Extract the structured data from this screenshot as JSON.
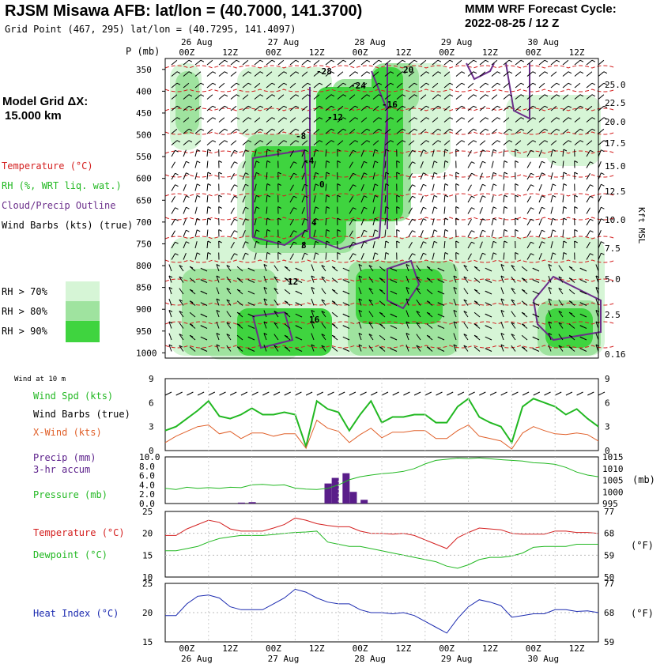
{
  "header": {
    "title": "RJSM Misawa AFB:  lat/lon = (40.7000, 141.3700)",
    "grid_point": "Grid Point (467, 295) lat/lon = (40.7295, 141.4097)",
    "cycle_line1": "MMM WRF Forecast Cycle:",
    "cycle_line2": "2022-08-25 / 12  Z"
  },
  "legend": {
    "model_grid": "Model Grid ΔX:",
    "model_grid_value": "15.000 km",
    "temperature": "Temperature (°C)",
    "rh": "RH (%, WRT liq. wat.)",
    "cloud": "Cloud/Precip Outline",
    "barbs": "Wind Barbs (kts) (true)",
    "rh70": "RH > 70%",
    "rh80": "RH > 80%",
    "rh90": "RH > 90%",
    "wind_at": "Wind at 10 m",
    "wind_spd": "Wind Spd (kts)",
    "wind_barbs": "Wind Barbs (true)",
    "xwind": "X-Wind (kts)",
    "precip1": "Precip (mm)",
    "precip2": "3-hr accum",
    "pressure": "Pressure (mb)",
    "temp2": "Temperature (°C)",
    "dewpoint": "Dewpoint (°C)",
    "heat_index": "Heat Index (°C)",
    "mb_unit": "(mb)",
    "f_unit": "(°F)",
    "kft": "Kft MSL",
    "p_mb": "P (mb)"
  },
  "colors": {
    "temperature": "#d42020",
    "rh": "#22b822",
    "cloud": "#6a2d8a",
    "xwind": "#e0602a",
    "precip": "#5a1e8a",
    "heat": "#1c2bb0",
    "rh70": "#d6f5d6",
    "rh80": "#9fe39f",
    "rh90": "#3fd43f"
  },
  "chart_data": [
    {
      "type": "heatmap",
      "name": "time-height cross section",
      "time_labels_top": [
        "00Z",
        "12Z",
        "00Z",
        "12Z",
        "00Z",
        "12Z",
        "00Z",
        "12Z",
        "00Z",
        "12Z"
      ],
      "date_labels": [
        "26 Aug",
        "27 Aug",
        "28 Aug",
        "29 Aug",
        "30 Aug"
      ],
      "pressure_levels": [
        350,
        400,
        450,
        500,
        550,
        600,
        650,
        700,
        750,
        800,
        850,
        900,
        950,
        1000
      ],
      "height_kft": [
        "25.0",
        "22.5",
        "20.0",
        "17.5",
        "15.0",
        "12.5",
        "10.0",
        "7.5",
        "5.0",
        "2.5",
        "0.16"
      ],
      "temp_labels": [
        "-28",
        "-24",
        "-16",
        "-12",
        "-8",
        "-4",
        "0",
        "4",
        "8",
        "12",
        "16",
        "20"
      ]
    },
    {
      "type": "line",
      "name": "10 m wind",
      "x_hours": [
        0,
        3,
        6,
        9,
        12,
        15,
        18,
        21,
        24,
        27,
        30,
        33,
        36,
        39,
        42,
        45,
        48,
        51,
        54,
        57,
        60,
        63,
        66,
        69,
        72,
        75,
        78,
        81,
        84,
        87,
        90,
        93,
        96,
        99,
        102,
        105,
        108,
        111,
        114,
        117,
        120
      ],
      "series": [
        {
          "name": "Wind Spd (kts)",
          "values": [
            2.5,
            3,
            4,
            5,
            6.2,
            4.3,
            4,
            4.5,
            5.3,
            4.5,
            4.5,
            4.8,
            4.5,
            0.5,
            6.2,
            5.2,
            4.8,
            2.5,
            4.5,
            6.2,
            3.5,
            4.2,
            4.2,
            4.5,
            4.5,
            3.5,
            3.5,
            5.5,
            6.5,
            4.2,
            3.5,
            3,
            1,
            5.5,
            6.5,
            6,
            5.5,
            4.5,
            5.2,
            4,
            3
          ]
        },
        {
          "name": "X-Wind (kts)",
          "values": [
            1,
            1.8,
            2.4,
            3,
            3.2,
            2.1,
            2.4,
            1.5,
            2.2,
            2.2,
            1.8,
            2.1,
            2.1,
            0.3,
            3.8,
            2.8,
            2.4,
            1,
            2,
            2.8,
            1.6,
            2.3,
            2.3,
            2.5,
            2.5,
            1.5,
            1.5,
            2.5,
            3.2,
            1.8,
            1.5,
            1.2,
            0.2,
            2.2,
            3,
            2.5,
            2.1,
            2,
            2.2,
            2,
            1.2
          ]
        }
      ],
      "ylim": [
        0,
        9
      ],
      "yticks": [
        0,
        3,
        6,
        9
      ]
    },
    {
      "type": "bar",
      "name": "precip and pressure",
      "precip_bins": [
        {
          "x": 21,
          "value": 0.2
        },
        {
          "x": 24,
          "value": 0.3
        },
        {
          "x": 45,
          "value": 4.3
        },
        {
          "x": 47,
          "value": 5.5
        },
        {
          "x": 50,
          "value": 6.5
        },
        {
          "x": 52,
          "value": 2.5
        },
        {
          "x": 55,
          "value": 0.8
        }
      ],
      "precip_ylim": [
        0,
        10
      ],
      "precip_ticks": [
        "0.0",
        "2.0",
        "4.0",
        "6.0",
        "8.0",
        "10.0"
      ],
      "pressure": {
        "name": "Pressure (mb)",
        "values": [
          1001.5,
          1001,
          1002,
          1001.5,
          1001.8,
          1001.5,
          1002,
          1001.8,
          1003,
          1003.2,
          1002.8,
          1003,
          1001.6,
          1001.2,
          1001,
          1001.5,
          1003,
          1005.2,
          1006.5,
          1007.2,
          1007.8,
          1008.2,
          1008.8,
          1010,
          1012,
          1013.5,
          1014,
          1014.5,
          1014.3,
          1014.6,
          1014.2,
          1013.8,
          1013.5,
          1013.2,
          1012.5,
          1012.3,
          1011.8,
          1010.5,
          1008.5,
          1007.2,
          1006.5
        ]
      },
      "pressure_ylim": [
        995,
        1015
      ],
      "pressure_ticks": [
        "995",
        "1000",
        "1005",
        "1010",
        "1015"
      ]
    },
    {
      "type": "line",
      "name": "temperature and dewpoint",
      "series": [
        {
          "name": "Temperature (°C)",
          "values": [
            19.5,
            19.5,
            21,
            22,
            23,
            22.5,
            21,
            20.5,
            20.5,
            20.5,
            21.2,
            22,
            23.5,
            23,
            22.2,
            21.8,
            21.5,
            21.5,
            20.5,
            20,
            20,
            19.8,
            20,
            19.5,
            18.5,
            17.5,
            16.5,
            19,
            20.2,
            21.2,
            21,
            20.8,
            20,
            19.8,
            19.8,
            19.8,
            20.5,
            20.5,
            20.2,
            20.2,
            20
          ]
        },
        {
          "name": "Dewpoint (°C)",
          "values": [
            16,
            16,
            16.5,
            17,
            18,
            18.8,
            19.2,
            19.5,
            19.5,
            19.5,
            19.7,
            20,
            20.2,
            20.3,
            20.5,
            18,
            17.5,
            17,
            17,
            16.5,
            16,
            15.5,
            15,
            14.5,
            14,
            13.5,
            12.5,
            12,
            12.8,
            14,
            14.5,
            14.5,
            14.8,
            15.5,
            16.8,
            17,
            17,
            17,
            17.5,
            17.5,
            17.5
          ]
        }
      ],
      "ylim": [
        10,
        25
      ],
      "yticks_c": [
        "10",
        "15",
        "20",
        "25"
      ],
      "yticks_f": [
        "50",
        "59",
        "68",
        "77"
      ]
    },
    {
      "type": "line",
      "name": "heat index",
      "series": [
        {
          "name": "Heat Index (°C)",
          "values": [
            19.5,
            19.5,
            21.5,
            22.8,
            23,
            22.5,
            21,
            20.5,
            20.5,
            20.5,
            21.5,
            22.5,
            24,
            23.5,
            22.5,
            21.8,
            21.5,
            21.5,
            20.5,
            20,
            20,
            19.8,
            20,
            19.5,
            18.5,
            17.5,
            16.5,
            19,
            21,
            22.2,
            21.8,
            21.2,
            19.2,
            19.5,
            19.8,
            19.8,
            20.5,
            20.5,
            20.2,
            20.3,
            20
          ]
        }
      ],
      "ylim": [
        15,
        25
      ],
      "yticks_c": [
        "15",
        "20",
        "25"
      ],
      "yticks_f": [
        "59",
        "68",
        "77"
      ]
    }
  ],
  "bottom_axis": {
    "time_labels": [
      "00Z",
      "12Z",
      "00Z",
      "12Z",
      "00Z",
      "12Z",
      "00Z",
      "12Z",
      "00Z",
      "12Z"
    ],
    "date_labels": [
      "26 Aug",
      "27 Aug",
      "28 Aug",
      "29 Aug",
      "30 Aug"
    ]
  }
}
